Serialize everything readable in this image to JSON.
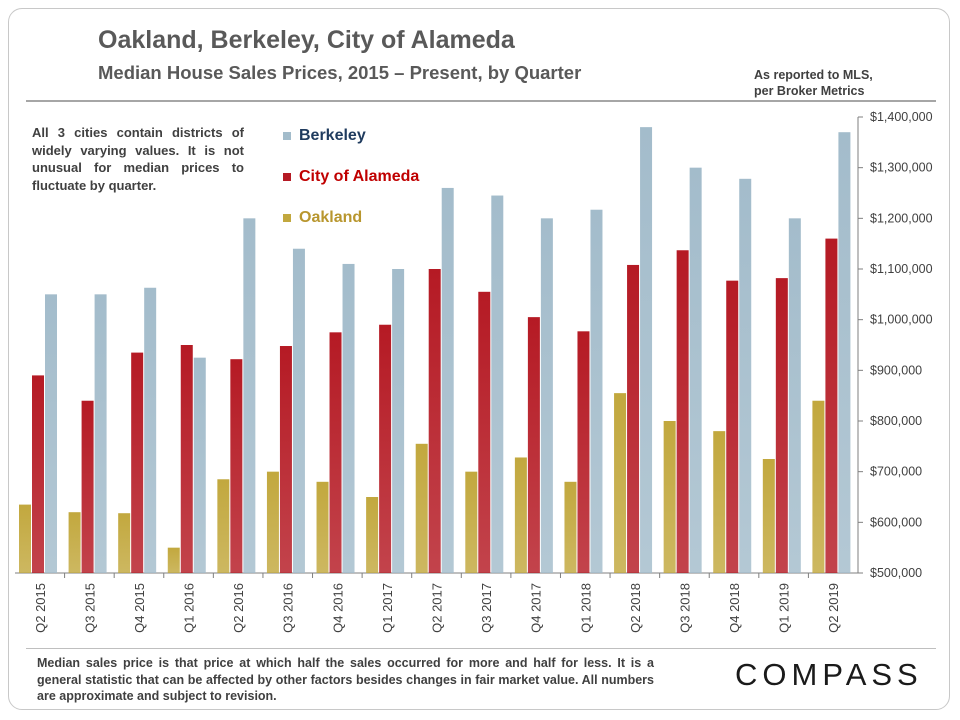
{
  "header": {
    "title": "Oakland, Berkeley, City of Alameda",
    "subtitle": "Median House Sales Prices, 2015 – Present, by Quarter",
    "source_line1": "As reported to MLS,",
    "source_line2": "per Broker Metrics"
  },
  "note": "All 3 cities contain districts of widely varying values. It is not unusual for median prices to fluctuate by quarter.",
  "footer": "Median sales price is that price at which half the sales occurred for more and half for less. It is a general statistic that can be affected by other factors besides changes in fair market value. All numbers are approximate and subject to revision.",
  "logo": "COMPASS",
  "colors": {
    "oakland": "#c2a83e",
    "alameda": "#b51a24",
    "berkeley": "#a3bccb",
    "berkeley_label": "#1f3b5e",
    "alameda_label": "#c00000",
    "oakland_label": "#b8962e"
  },
  "chart_data": {
    "type": "bar",
    "title": "Oakland, Berkeley, City of Alameda",
    "categories": [
      "Q2 2015",
      "Q3 2015",
      "Q4 2015",
      "Q1 2016",
      "Q2 2016",
      "Q3 2016",
      "Q4 2016",
      "Q1 2017",
      "Q2 2017",
      "Q3 2017",
      "Q4 2017",
      "Q1 2018",
      "Q2 2018",
      "Q3 2018",
      "Q4 2018",
      "Q1 2019",
      "Q2 2019"
    ],
    "series": [
      {
        "name": "Oakland",
        "values": [
          635000,
          620000,
          618000,
          550000,
          685000,
          700000,
          680000,
          650000,
          755000,
          700000,
          728000,
          680000,
          855000,
          800000,
          780000,
          725000,
          840000
        ]
      },
      {
        "name": "City of Alameda",
        "values": [
          890000,
          840000,
          935000,
          950000,
          922000,
          948000,
          975000,
          990000,
          1100000,
          1055000,
          1005000,
          977000,
          1108000,
          1137000,
          1077000,
          1082000,
          1160000
        ]
      },
      {
        "name": "Berkeley",
        "values": [
          1050000,
          1050000,
          1063000,
          925000,
          1200000,
          1140000,
          1110000,
          1100000,
          1260000,
          1245000,
          1200000,
          1217000,
          1380000,
          1300000,
          1278000,
          1200000,
          1370000
        ]
      }
    ],
    "ylim": [
      500000,
      1400000
    ],
    "yticks": [
      "$500,000",
      "$600,000",
      "$700,000",
      "$800,000",
      "$900,000",
      "$1,000,000",
      "$1,100,000",
      "$1,200,000",
      "$1,300,000",
      "$1,400,000"
    ],
    "ytick_values": [
      500000,
      600000,
      700000,
      800000,
      900000,
      1000000,
      1100000,
      1200000,
      1300000,
      1400000
    ],
    "legend_placement": "top-left (inside plot)",
    "grid": false
  }
}
